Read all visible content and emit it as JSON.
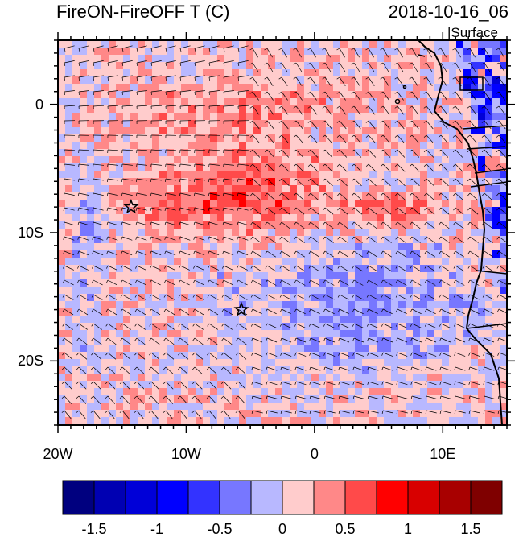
{
  "title_left": "FireON-FireOFF T (C)",
  "title_right": "2018-10-16_06",
  "level_label": "Surface",
  "map": {
    "lon_range": [
      -20,
      15
    ],
    "lat_range": [
      -25,
      5
    ],
    "lon_ticks": [
      {
        "value": -20,
        "label": "20W"
      },
      {
        "value": -10,
        "label": "10W"
      },
      {
        "value": 0,
        "label": "0"
      },
      {
        "value": 10,
        "label": "10E"
      }
    ],
    "lat_ticks": [
      {
        "value": 0,
        "label": "0"
      },
      {
        "value": -10,
        "label": "10S"
      },
      {
        "value": -20,
        "label": "20S"
      }
    ],
    "stars": [
      {
        "lon": -14.3,
        "lat": -8.0
      },
      {
        "lon": -5.7,
        "lat": -16.0
      }
    ],
    "field": "temperature difference with wind barbs"
  },
  "colorbar": {
    "colors": [
      "#00007f",
      "#0000b2",
      "#0000d8",
      "#0000ff",
      "#3333ff",
      "#7777ff",
      "#b8b8ff",
      "#ffcccc",
      "#ff8888",
      "#ff4a4a",
      "#ff0000",
      "#d80000",
      "#a80000",
      "#7f0000"
    ],
    "labels": [
      "-1.5",
      "-1",
      "-0.5",
      "0",
      "0.5",
      "1",
      "1.5"
    ]
  }
}
